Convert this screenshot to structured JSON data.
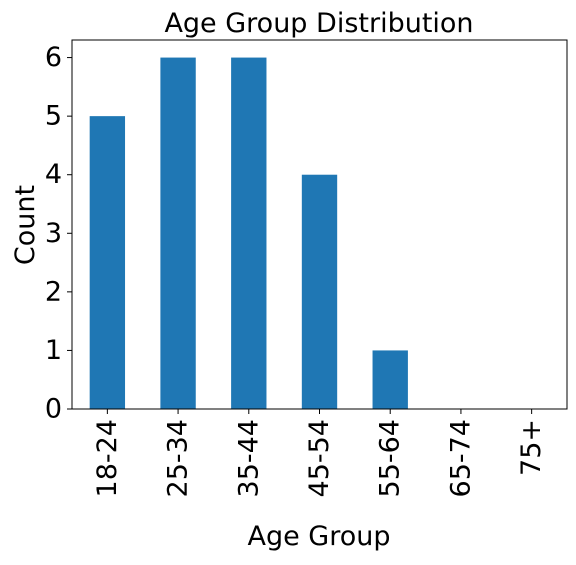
{
  "chart_data": {
    "type": "bar",
    "title": "Age Group Distribution",
    "xlabel": "Age Group",
    "ylabel": "Count",
    "categories": [
      "18-24",
      "25-34",
      "35-44",
      "45-54",
      "55-64",
      "65-74",
      "75+"
    ],
    "values": [
      5,
      6,
      6,
      4,
      1,
      0,
      0
    ],
    "ylim": [
      0,
      6.3
    ],
    "yticks": [
      "0",
      "1",
      "2",
      "3",
      "4",
      "5",
      "6"
    ],
    "bar_color": "#1f77b4",
    "grid": false,
    "legend": "none"
  }
}
